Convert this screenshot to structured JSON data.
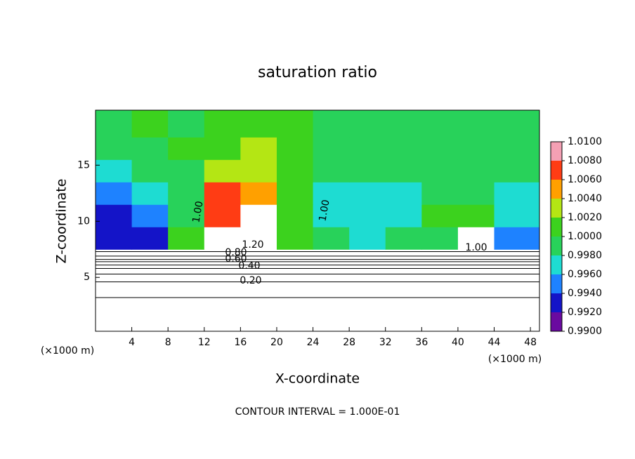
{
  "chart_data": {
    "type": "contour",
    "title": "saturation ratio",
    "x_label": "X-coordinate",
    "y_label": "Z-coordinate",
    "x_unit_labels": [
      "(×1000 m)",
      "(×1000 m)"
    ],
    "footer": "CONTOUR INTERVAL = 1.000E-01",
    "xlim": [
      0,
      49
    ],
    "ylim": [
      0.2,
      19.9
    ],
    "xticks": [
      4,
      8,
      12,
      16,
      20,
      24,
      28,
      32,
      36,
      40,
      44,
      48
    ],
    "yticks": [
      5,
      10,
      15
    ],
    "colorbar": {
      "ticks": [
        {
          "value": 0.99,
          "label": "0.9900"
        },
        {
          "value": 0.992,
          "label": "0.9920"
        },
        {
          "value": 0.994,
          "label": "0.9940"
        },
        {
          "value": 0.996,
          "label": "0.9960"
        },
        {
          "value": 0.998,
          "label": "0.9980"
        },
        {
          "value": 1.0,
          "label": "1.0000"
        },
        {
          "value": 1.002,
          "label": "1.0020"
        },
        {
          "value": 1.004,
          "label": "1.0040"
        },
        {
          "value": 1.006,
          "label": "1.0060"
        },
        {
          "value": 1.008,
          "label": "1.0080"
        },
        {
          "value": 1.01,
          "label": "1.0100"
        }
      ],
      "colors": [
        "#6a0aa0",
        "#1414c8",
        "#1e82ff",
        "#1edcd2",
        "#28d25a",
        "#3cd21e",
        "#b4e614",
        "#ffa000",
        "#ff3c14",
        "#f5a0b4"
      ]
    },
    "field": {
      "x": [
        2,
        6,
        10,
        14,
        18,
        22,
        26,
        30,
        34,
        38,
        42,
        46
      ],
      "z": [
        8.5,
        10.5,
        12.5,
        14.5,
        16.5,
        18.5
      ],
      "values": [
        [
          0.9925,
          0.994,
          1.001,
          1.012,
          1.012,
          1.0005,
          0.999,
          0.997,
          0.999,
          1.0,
          1.015,
          0.996
        ],
        [
          0.994,
          0.996,
          1.0,
          1.008,
          1.012,
          1.002,
          0.998,
          0.9965,
          0.9975,
          1.0005,
          1.001,
          0.997
        ],
        [
          0.996,
          0.997,
          1.0,
          1.0065,
          1.0055,
          1.001,
          0.998,
          0.997,
          0.998,
          1.0,
          1.0,
          0.998
        ],
        [
          0.998,
          0.9985,
          1.0,
          1.003,
          1.003,
          1.001,
          0.999,
          0.9985,
          0.9985,
          0.9995,
          1.0,
          0.999
        ],
        [
          0.9995,
          1.0,
          1.0005,
          1.0015,
          1.0025,
          1.001,
          1.0,
          0.9995,
          0.999,
          1.0,
          1.0,
          0.9995
        ],
        [
          1.0,
          1.0005,
          1.0,
          1.001,
          1.0015,
          1.001,
          1.0,
          0.9995,
          1.0,
          0.9995,
          1.0,
          1.0
        ]
      ]
    },
    "contour_heights": [
      3.2,
      4.6,
      5.3,
      5.8,
      6.1,
      6.4,
      6.6,
      6.9,
      7.3
    ],
    "contour_labels": [
      "1.00",
      "1.00",
      "1.20",
      "0.80",
      "0.60",
      "0.40",
      "0.20",
      "1.00"
    ]
  }
}
